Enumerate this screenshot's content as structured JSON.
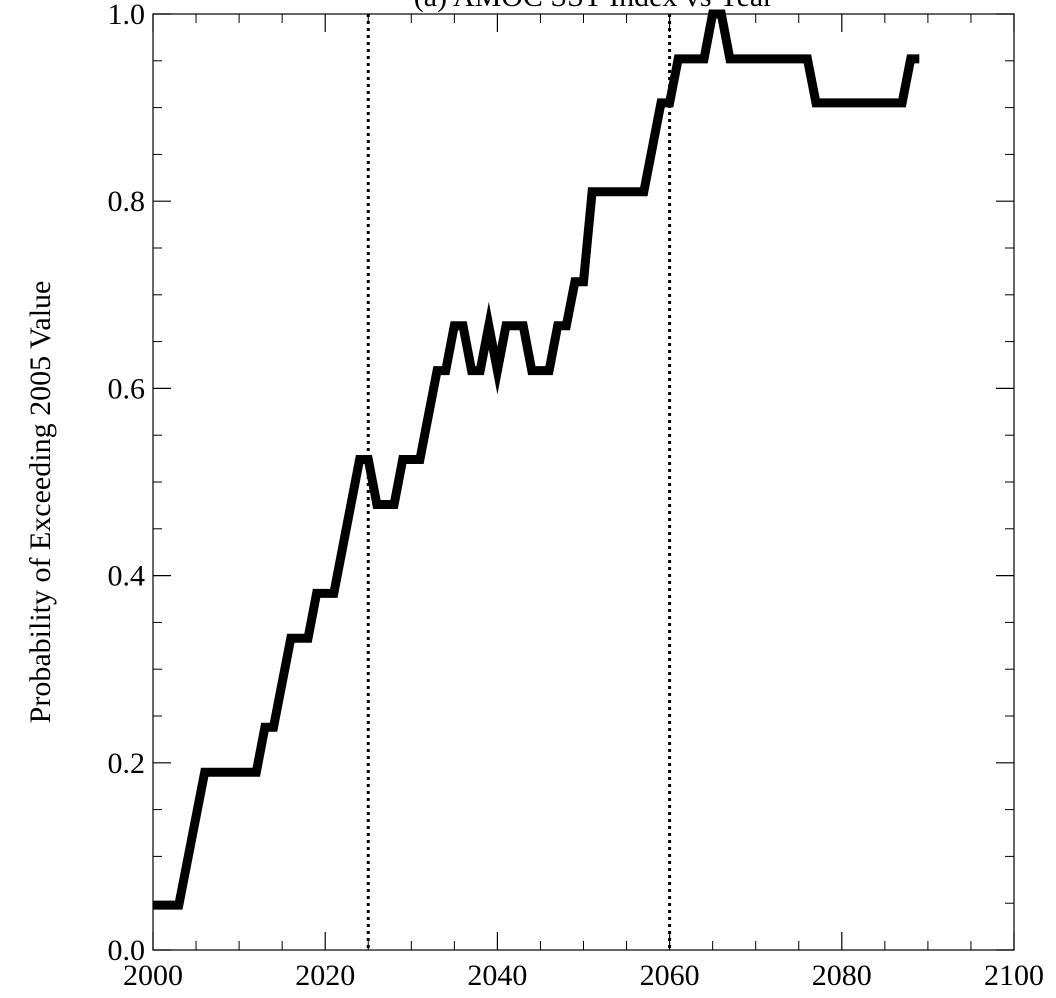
{
  "chart_data": {
    "type": "line",
    "title": "(a) AMOC SST Index vs Year",
    "xlabel": "",
    "ylabel": "Probability of Exceeding 2005 Value",
    "xlim": [
      2000,
      2100
    ],
    "ylim": [
      0.0,
      1.0
    ],
    "x_ticks": [
      2000,
      2020,
      2040,
      2060,
      2080,
      2100
    ],
    "y_ticks": [
      0.0,
      0.2,
      0.4,
      0.6,
      0.8,
      1.0
    ],
    "x_tick_labels": [
      "2000",
      "2020",
      "2040",
      "2060",
      "2080",
      "2100"
    ],
    "y_tick_labels": [
      "0.0",
      "0.2",
      "0.4",
      "0.6",
      "0.8",
      "1.0"
    ],
    "grid": false,
    "reference_lines": [
      {
        "axis": "x",
        "value": 2025,
        "style": "dotted"
      },
      {
        "axis": "x",
        "value": 2060,
        "style": "dotted"
      }
    ],
    "series": [
      {
        "color": "#000000",
        "x": [
          2000,
          2003,
          2006,
          2009,
          2012,
          2013,
          2014,
          2016,
          2018,
          2019,
          2021,
          2024,
          2025,
          2026,
          2028,
          2029,
          2031,
          2033,
          2034,
          2035,
          2036,
          2037,
          2038,
          2039,
          2040,
          2041,
          2043,
          2044,
          2046,
          2047,
          2048,
          2049,
          2050,
          2051,
          2052,
          2053,
          2055,
          2057,
          2059,
          2060,
          2061,
          2062,
          2064,
          2065,
          2066,
          2067,
          2070,
          2073,
          2076,
          2077,
          2080,
          2084,
          2087,
          2088,
          2089
        ],
        "y": [
          0.048,
          0.048,
          0.19,
          0.19,
          0.19,
          0.238,
          0.238,
          0.333,
          0.333,
          0.381,
          0.381,
          0.524,
          0.524,
          0.476,
          0.476,
          0.524,
          0.524,
          0.619,
          0.619,
          0.667,
          0.667,
          0.619,
          0.619,
          0.667,
          0.619,
          0.667,
          0.667,
          0.619,
          0.619,
          0.667,
          0.667,
          0.714,
          0.714,
          0.81,
          0.81,
          0.81,
          0.81,
          0.81,
          0.905,
          0.905,
          0.952,
          0.952,
          0.952,
          1.0,
          1.0,
          0.952,
          0.952,
          0.952,
          0.952,
          0.905,
          0.905,
          0.905,
          0.905,
          0.952,
          0.952
        ]
      }
    ]
  }
}
